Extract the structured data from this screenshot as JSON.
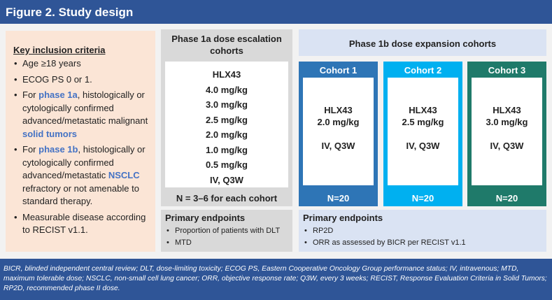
{
  "header": {
    "title": "Figure 2. Study design"
  },
  "inclusion": {
    "title": "Key inclusion criteria",
    "items": [
      [
        "Age ≥18 years"
      ],
      [
        "ECOG PS 0 or 1."
      ],
      [
        "For ",
        "phase 1a",
        ", histologically or cytologically confirmed advanced/metastatic malignant ",
        "solid tumors"
      ],
      [
        "For ",
        "phase 1b",
        ", histologically or cytologically confirmed advanced/metastatic ",
        "NSCLC",
        " refractory or not amenable to standard therapy."
      ],
      [
        "Measurable disease according to RECIST v1.1."
      ]
    ]
  },
  "phase1a": {
    "title": "Phase 1a dose escalation cohorts",
    "drug": "HLX43",
    "doses": [
      "4.0 mg/kg",
      "3.0 mg/kg",
      "2.5 mg/kg",
      "2.0 mg/kg",
      "1.0 mg/kg",
      "0.5 mg/kg"
    ],
    "regimen": "IV, Q3W",
    "n": "N = 3–6 for each cohort",
    "endpoints_title": "Primary endpoints",
    "endpoints": [
      "Proportion of patients with DLT",
      "MTD"
    ]
  },
  "phase1b": {
    "title": "Phase 1b dose expansion cohorts",
    "cohorts": [
      {
        "name": "Cohort 1",
        "drug": "HLX43",
        "dose": "2.0 mg/kg",
        "regimen": "IV, Q3W",
        "n": "N=20"
      },
      {
        "name": "Cohort 2",
        "drug": "HLX43",
        "dose": "2.5 mg/kg",
        "regimen": "IV, Q3W",
        "n": "N=20"
      },
      {
        "name": "Cohort 3",
        "drug": "HLX43",
        "dose": "3.0 mg/kg",
        "regimen": "IV, Q3W",
        "n": "N=20"
      }
    ],
    "endpoints_title": "Primary endpoints",
    "endpoints": [
      "RP2D",
      "ORR as assessed by BICR per RECIST v1.1"
    ]
  },
  "footer": {
    "text": "BICR, blinded independent central review; DLT, dose-limiting toxicity; ECOG PS, Eastern Cooperative Oncology Group performance status; IV, intravenous; MTD, maximum tolerable dose; NSCLC, non-small cell lung cancer; ORR, objective response rate; Q3W, every 3 weeks; RECIST, Response Evaluation Criteria in Solid Tumors; RP2D, recommended phase II dose."
  }
}
